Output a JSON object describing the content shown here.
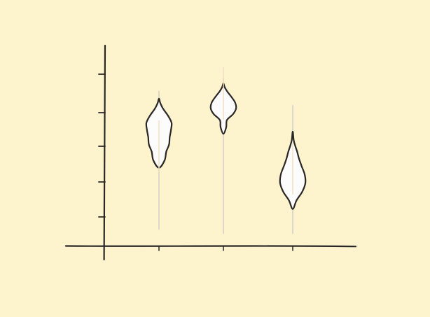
{
  "theme": {
    "background": "#FDF3CC",
    "ink": "#2A2726",
    "violin_fill": "#FCFCFC",
    "whisker": "#DDD6C9",
    "median": "#F2DFC0"
  },
  "chart_data": {
    "type": "violin",
    "title": "",
    "xlabel": "",
    "ylabel": "",
    "x_ticks": 3,
    "y_ticks": 5,
    "ylim": [
      0,
      6
    ],
    "grid": false,
    "legend": "none",
    "violins": [
      {
        "min": 0.6,
        "max": 5.4,
        "median": 3.05,
        "density": [
          [
            2.74,
            0.0
          ],
          [
            3.0,
            0.45
          ],
          [
            3.3,
            0.58
          ],
          [
            3.55,
            0.8
          ],
          [
            3.8,
            0.85
          ],
          [
            4.05,
            0.95
          ],
          [
            4.3,
            1.0
          ],
          [
            4.55,
            0.72
          ],
          [
            4.8,
            0.32
          ],
          [
            5.0,
            0.1
          ],
          [
            5.15,
            0.0
          ]
        ]
      },
      {
        "min": 0.45,
        "max": 5.85,
        "median": 4.9,
        "density": [
          [
            3.92,
            0.0
          ],
          [
            4.15,
            0.22
          ],
          [
            4.4,
            0.28
          ],
          [
            4.6,
            0.75
          ],
          [
            4.8,
            1.0
          ],
          [
            5.0,
            0.94
          ],
          [
            5.2,
            0.65
          ],
          [
            5.4,
            0.3
          ],
          [
            5.55,
            0.1
          ],
          [
            5.68,
            0.0
          ]
        ]
      },
      {
        "min": 0.45,
        "max": 4.9,
        "median": 2.3,
        "density": [
          [
            1.3,
            0.0
          ],
          [
            1.6,
            0.3
          ],
          [
            1.9,
            0.75
          ],
          [
            2.2,
            1.0
          ],
          [
            2.5,
            0.95
          ],
          [
            2.8,
            0.7
          ],
          [
            3.05,
            0.5
          ],
          [
            3.3,
            0.35
          ],
          [
            3.5,
            0.2
          ],
          [
            3.7,
            0.08
          ],
          [
            4.0,
            0.0
          ]
        ]
      }
    ]
  }
}
